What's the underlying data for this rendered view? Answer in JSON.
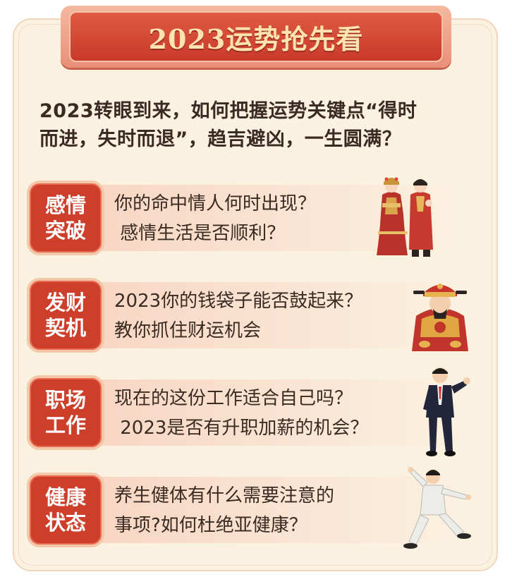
{
  "header": {
    "title": "2023运势抢先看"
  },
  "intro": {
    "line1": "2023转眼到来，如何把握运势关键点“得时",
    "line2": "而进，失时而退”，趋吉避凶，一生圆满？"
  },
  "sections": [
    {
      "tag_line1": "感情",
      "tag_line2": "突破",
      "text_line1": "你的命中情人何时出现？",
      "text_line2": " 感情生活是否顺利？",
      "illustration": "wedding-couple-icon"
    },
    {
      "tag_line1": "发财",
      "tag_line2": "契机",
      "text_line1": "2023你的钱袋子能否鼓起来？",
      "text_line2": "教你抓住财运机会",
      "illustration": "god-of-wealth-icon"
    },
    {
      "tag_line1": "职场",
      "tag_line2": "工作",
      "text_line1": "现在的这份工作适合自己吗？",
      "text_line2": " 2023是否有升职加薪的机会？",
      "illustration": "businessman-icon"
    },
    {
      "tag_line1": "健康",
      "tag_line2": "状态",
      "text_line1": "养生健体有什么需要注意的",
      "text_line2": "事项?如何杜绝亚健康？",
      "illustration": "tai-chi-icon"
    }
  ],
  "colors": {
    "accent_red": "#cd3f2a",
    "card_bg": "#fbf1e0",
    "title_text": "#fde3b0"
  }
}
